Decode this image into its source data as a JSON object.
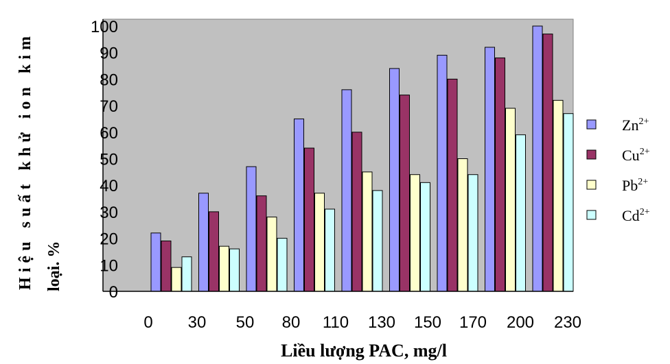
{
  "chart_data": {
    "type": "bar",
    "xlabel": "Liều lượng PAC, mg/l",
    "ylabel_line1": "Hiệu suất khử ion kim",
    "ylabel_line2": "loại. %",
    "ylim": [
      0,
      100
    ],
    "y_ticks": [
      0,
      10,
      20,
      30,
      40,
      50,
      60,
      70,
      80,
      90,
      100
    ],
    "x_tick_labels": [
      "0",
      "30",
      "50",
      "80",
      "110",
      "130",
      "150",
      "170",
      "200",
      "230"
    ],
    "categories": [
      "0",
      "30",
      "50",
      "80",
      "110",
      "130",
      "150",
      "170",
      "200"
    ],
    "legend_position": "right",
    "grid": false,
    "plot_background": "#c0c0c0",
    "series": [
      {
        "name": "Zn",
        "sup": "2+",
        "color": "#9999ff",
        "values": [
          22,
          37,
          47,
          65,
          76,
          84,
          89,
          92,
          100
        ]
      },
      {
        "name": "Cu",
        "sup": "2+",
        "color": "#993366",
        "values": [
          19,
          30,
          36,
          54,
          60,
          74,
          80,
          88,
          97
        ]
      },
      {
        "name": "Pb",
        "sup": "2+",
        "color": "#ffffcc",
        "values": [
          9,
          17,
          28,
          37,
          45,
          44,
          50,
          69,
          72
        ]
      },
      {
        "name": "Cd",
        "sup": "2+",
        "color": "#ccffff",
        "values": [
          13,
          16,
          20,
          31,
          38,
          41,
          44,
          59,
          67
        ]
      }
    ]
  }
}
